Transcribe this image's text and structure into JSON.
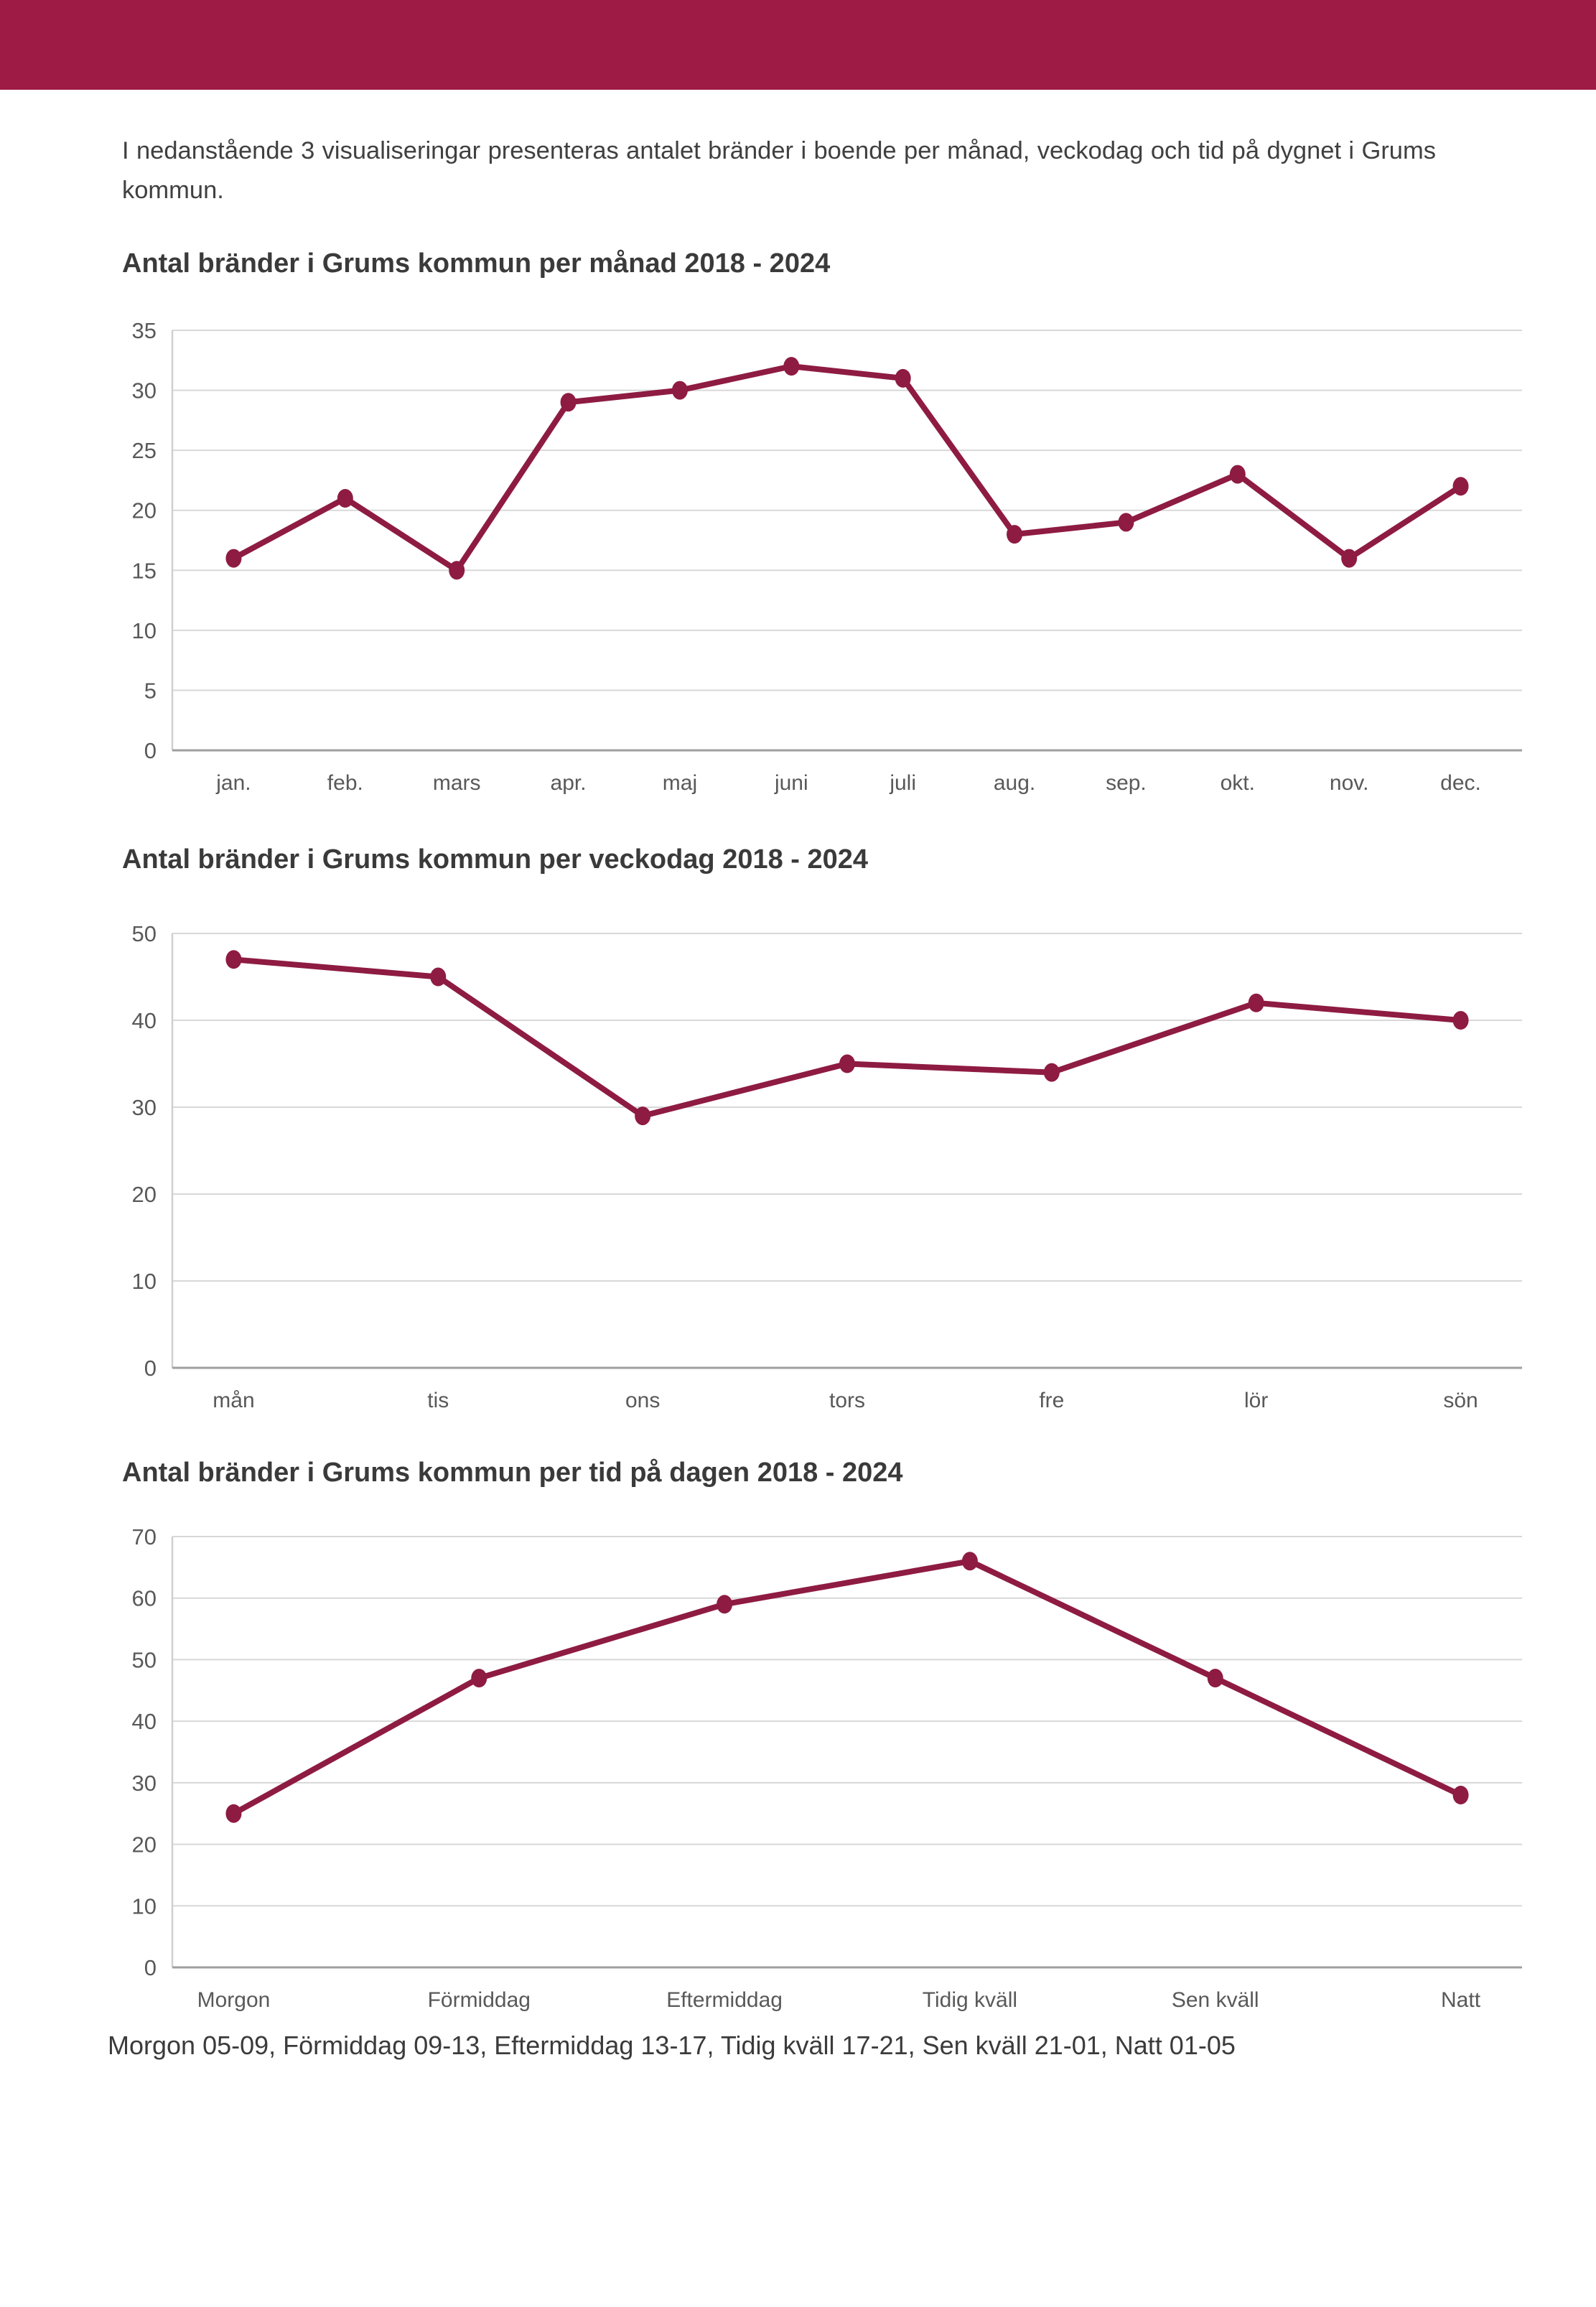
{
  "page": {
    "intro": "I nedanstående 3 visualiseringar presenteras antalet bränder i boende per månad, veckodag och tid på dygnet i Grums kommun.",
    "caption": "Morgon 05-09, Förmiddag 09-13, Eftermiddag 13-17, Tidig kväll 17-21, Sen kväll 21-01, Natt 01-05"
  },
  "colors": {
    "header_bar": "#9d1b45",
    "line": "#8e1b42",
    "marker": "#8e1b42",
    "grid": "#d8d8d8",
    "axis_bottom": "#9f9f9f",
    "axis_left": "#cfcfcf",
    "tick_text": "#595959",
    "heading_text": "#3a3a3a",
    "body_text": "#404040"
  },
  "chart_data": [
    {
      "type": "line",
      "title": "Antal bränder i Grums kommun per månad 2018 - 2024",
      "categories": [
        "jan.",
        "feb.",
        "mars",
        "apr.",
        "maj",
        "juni",
        "juli",
        "aug.",
        "sep.",
        "okt.",
        "nov.",
        "dec."
      ],
      "values": [
        16,
        21,
        15,
        29,
        30,
        32,
        31,
        18,
        19,
        23,
        16,
        22
      ],
      "series_name": "Antal bränder",
      "xlabel": "",
      "ylabel": "",
      "ylim": [
        0,
        35
      ],
      "yticks": [
        0,
        5,
        10,
        15,
        20,
        25,
        30,
        35
      ],
      "grid": true,
      "legend": "none"
    },
    {
      "type": "line",
      "title": "Antal bränder i Grums kommun per veckodag 2018 - 2024",
      "categories": [
        "mån",
        "tis",
        "ons",
        "tors",
        "fre",
        "lör",
        "sön"
      ],
      "values": [
        47,
        45,
        29,
        35,
        34,
        42,
        40
      ],
      "series_name": "Antal bränder",
      "xlabel": "",
      "ylabel": "",
      "ylim": [
        0,
        50
      ],
      "yticks": [
        0,
        10,
        20,
        30,
        40,
        50
      ],
      "grid": true,
      "legend": "none"
    },
    {
      "type": "line",
      "title": "Antal bränder i Grums kommun per tid på dagen 2018 - 2024",
      "categories": [
        "Morgon",
        "Förmiddag",
        "Eftermiddag",
        "Tidig kväll",
        "Sen kväll",
        "Natt"
      ],
      "values": [
        25,
        47,
        59,
        66,
        47,
        28
      ],
      "series_name": "Antal bränder",
      "xlabel": "",
      "ylabel": "",
      "ylim": [
        0,
        70
      ],
      "yticks": [
        0,
        10,
        20,
        30,
        40,
        50,
        60,
        70
      ],
      "grid": true,
      "legend": "none"
    }
  ]
}
